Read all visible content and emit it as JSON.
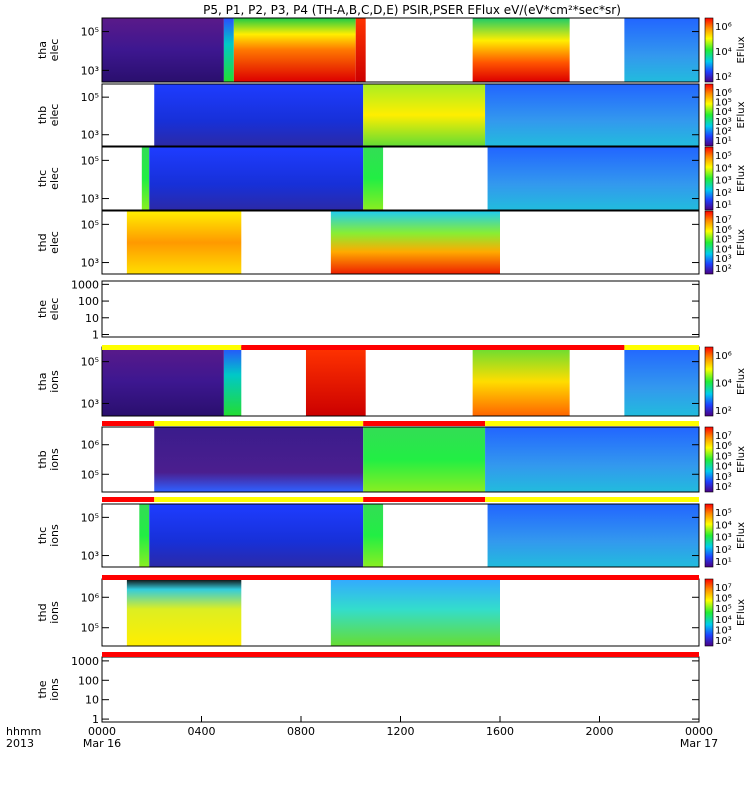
{
  "chart_data": {
    "type": "heatmap",
    "title": "P5, P1, P2, P3, P4 (TH-A,B,C,D,E) PSIR,PSER EFlux eV/(eV*cm²*sec*sr)",
    "time_axis": {
      "label_line1": "hhmm",
      "label_line2": "2013",
      "range_hours": [
        0,
        24
      ],
      "ticks": [
        {
          "t": 0,
          "label": "0000",
          "sub": "Mar 16"
        },
        {
          "t": 4,
          "label": "0400",
          "sub": ""
        },
        {
          "t": 8,
          "label": "0800",
          "sub": ""
        },
        {
          "t": 12,
          "label": "1200",
          "sub": ""
        },
        {
          "t": 16,
          "label": "1600",
          "sub": ""
        },
        {
          "t": 20,
          "label": "2000",
          "sub": ""
        },
        {
          "t": 24,
          "label": "0000",
          "sub": "Mar 17"
        }
      ]
    },
    "colorbar_label": "EFlux",
    "panels": [
      {
        "name": "tha elec",
        "line1": "tha",
        "line2": "elec",
        "ylog": true,
        "yticks": [
          {
            "v": 5,
            "label": "10⁵"
          },
          {
            "v": 3,
            "label": "10³"
          }
        ],
        "yrange": [
          2.4,
          5.7
        ],
        "colorbar": [
          "10⁶",
          "10⁴",
          "10²"
        ],
        "segments": [
          {
            "t0": 0,
            "t1": 4.9,
            "kind": "violet"
          },
          {
            "t0": 4.9,
            "t1": 5.3,
            "kind": "edge"
          },
          {
            "t0": 5.3,
            "t1": 10.2,
            "kind": "hot"
          },
          {
            "t0": 10.2,
            "t1": 10.6,
            "kind": "red"
          },
          {
            "t0": 14.9,
            "t1": 18.8,
            "kind": "warm"
          },
          {
            "t0": 21.0,
            "t1": 24,
            "kind": "cool"
          }
        ]
      },
      {
        "name": "thb elec",
        "line1": "thb",
        "line2": "elec",
        "ylog": true,
        "yticks": [
          {
            "v": 5,
            "label": "10⁵"
          },
          {
            "v": 3,
            "label": "10³"
          }
        ],
        "yrange": [
          2.4,
          5.7
        ],
        "colorbar": [
          "10⁶",
          "10⁵",
          "10⁴",
          "10³",
          "10²",
          "10¹"
        ],
        "segments": [
          {
            "t0": 2.1,
            "t1": 10.5,
            "kind": "blue"
          },
          {
            "t0": 10.5,
            "t1": 15.4,
            "kind": "yellowgreen"
          },
          {
            "t0": 15.4,
            "t1": 24,
            "kind": "cool"
          }
        ]
      },
      {
        "name": "thc elec",
        "line1": "thc",
        "line2": "elec",
        "ylog": true,
        "yticks": [
          {
            "v": 5,
            "label": "10⁵"
          },
          {
            "v": 3,
            "label": "10³"
          }
        ],
        "yrange": [
          2.4,
          5.7
        ],
        "colorbar": [
          "10⁵",
          "10⁴",
          "10³",
          "10²",
          "10¹"
        ],
        "segments": [
          {
            "t0": 1.6,
            "t1": 1.9,
            "kind": "green"
          },
          {
            "t0": 1.9,
            "t1": 10.5,
            "kind": "blue"
          },
          {
            "t0": 10.5,
            "t1": 11.3,
            "kind": "green"
          },
          {
            "t0": 15.5,
            "t1": 24,
            "kind": "cool"
          }
        ]
      },
      {
        "name": "thd elec",
        "line1": "thd",
        "line2": "elec",
        "ylog": true,
        "yticks": [
          {
            "v": 5,
            "label": "10⁵"
          },
          {
            "v": 3,
            "label": "10³"
          }
        ],
        "yrange": [
          2.4,
          5.7
        ],
        "colorbar": [
          "10⁷",
          "10⁶",
          "10⁵",
          "10⁴",
          "10³",
          "10²"
        ],
        "segments": [
          {
            "t0": 1.0,
            "t1": 5.6,
            "kind": "yellowspotted"
          },
          {
            "t0": 9.2,
            "t1": 16.0,
            "kind": "band"
          }
        ]
      },
      {
        "name": "the elec",
        "line1": "the",
        "line2": "elec",
        "ylog": true,
        "yticks": [
          {
            "v": 3,
            "label": "1000"
          },
          {
            "v": 2,
            "label": "100"
          },
          {
            "v": 1,
            "label": "10"
          },
          {
            "v": 0,
            "label": "1"
          }
        ],
        "yrange": [
          -0.15,
          3.2
        ],
        "colorbar": [],
        "segments": []
      },
      {
        "name": "tha ions",
        "line1": "tha",
        "line2": "ions",
        "ylog": true,
        "yticks": [
          {
            "v": 5,
            "label": "10⁵"
          },
          {
            "v": 3,
            "label": "10³"
          }
        ],
        "yrange": [
          2.4,
          5.7
        ],
        "colorbar": [
          "10⁶",
          "10⁴",
          "10²"
        ],
        "segments": [
          {
            "t0": 0,
            "t1": 4.9,
            "kind": "violet"
          },
          {
            "t0": 4.9,
            "t1": 5.6,
            "kind": "edge"
          },
          {
            "t0": 8.2,
            "t1": 10.6,
            "kind": "red"
          },
          {
            "t0": 14.9,
            "t1": 18.8,
            "kind": "warmsoft"
          },
          {
            "t0": 21.0,
            "t1": 24,
            "kind": "cool"
          }
        ]
      },
      {
        "name": "thb ions",
        "line1": "thb",
        "line2": "ions",
        "ylog": true,
        "yticks": [
          {
            "v": 6,
            "label": "10⁶"
          },
          {
            "v": 5,
            "label": "10⁵"
          }
        ],
        "yrange": [
          4.4,
          6.6
        ],
        "colorbar": [
          "10⁷",
          "10⁶",
          "10⁵",
          "10⁴",
          "10³",
          "10²"
        ],
        "segments": [
          {
            "t0": 2.1,
            "t1": 10.5,
            "kind": "violetwedge"
          },
          {
            "t0": 10.5,
            "t1": 15.4,
            "kind": "green"
          },
          {
            "t0": 15.4,
            "t1": 24,
            "kind": "cool"
          }
        ]
      },
      {
        "name": "thc ions",
        "line1": "thc",
        "line2": "ions",
        "ylog": true,
        "yticks": [
          {
            "v": 5,
            "label": "10⁵"
          },
          {
            "v": 3,
            "label": "10³"
          }
        ],
        "yrange": [
          2.4,
          5.7
        ],
        "colorbar": [
          "10⁵",
          "10⁴",
          "10³",
          "10²",
          "10¹"
        ],
        "segments": [
          {
            "t0": 1.5,
            "t1": 1.9,
            "kind": "green"
          },
          {
            "t0": 1.9,
            "t1": 10.5,
            "kind": "blue"
          },
          {
            "t0": 10.5,
            "t1": 11.3,
            "kind": "green"
          },
          {
            "t0": 15.5,
            "t1": 24,
            "kind": "cool"
          }
        ]
      },
      {
        "name": "thd ions",
        "line1": "thd",
        "line2": "ions",
        "ylog": true,
        "yticks": [
          {
            "v": 6,
            "label": "10⁶"
          },
          {
            "v": 5,
            "label": "10⁵"
          }
        ],
        "yrange": [
          4.4,
          6.6
        ],
        "colorbar": [
          "10⁷",
          "10⁶",
          "10⁵",
          "10⁴",
          "10³",
          "10²"
        ],
        "segments": [
          {
            "t0": 1.0,
            "t1": 5.6,
            "kind": "yellowcap"
          },
          {
            "t0": 9.2,
            "t1": 16.0,
            "kind": "cyanband"
          }
        ]
      },
      {
        "name": "the ions",
        "line1": "the",
        "line2": "ions",
        "ylog": true,
        "yticks": [
          {
            "v": 3,
            "label": "1000"
          },
          {
            "v": 2,
            "label": "100"
          },
          {
            "v": 1,
            "label": "10"
          },
          {
            "v": 0,
            "label": "1"
          }
        ],
        "yrange": [
          -0.15,
          3.2
        ],
        "colorbar": [],
        "segments": []
      }
    ],
    "mode_bars": [
      [
        {
          "t0": 0,
          "t1": 5.6,
          "color": "#ffff00"
        },
        {
          "t0": 5.6,
          "t1": 21.0,
          "color": "#ff0000"
        },
        {
          "t0": 21.0,
          "t1": 24,
          "color": "#ffff00"
        }
      ],
      [
        {
          "t0": 0,
          "t1": 2.1,
          "color": "#ff0000"
        },
        {
          "t0": 2.1,
          "t1": 10.5,
          "color": "#ffff00"
        },
        {
          "t0": 10.5,
          "t1": 15.4,
          "color": "#ff0000"
        },
        {
          "t0": 15.4,
          "t1": 24,
          "color": "#ffff00"
        }
      ],
      [
        {
          "t0": 0,
          "t1": 2.1,
          "color": "#ff0000"
        },
        {
          "t0": 2.1,
          "t1": 10.5,
          "color": "#ffff00"
        },
        {
          "t0": 10.5,
          "t1": 15.4,
          "color": "#ff0000"
        },
        {
          "t0": 15.4,
          "t1": 24,
          "color": "#ffff00"
        }
      ],
      [
        {
          "t0": 0,
          "t1": 24,
          "color": "#ff0000"
        }
      ],
      [
        {
          "t0": 0,
          "t1": 24,
          "color": "#ff0000"
        }
      ]
    ]
  }
}
